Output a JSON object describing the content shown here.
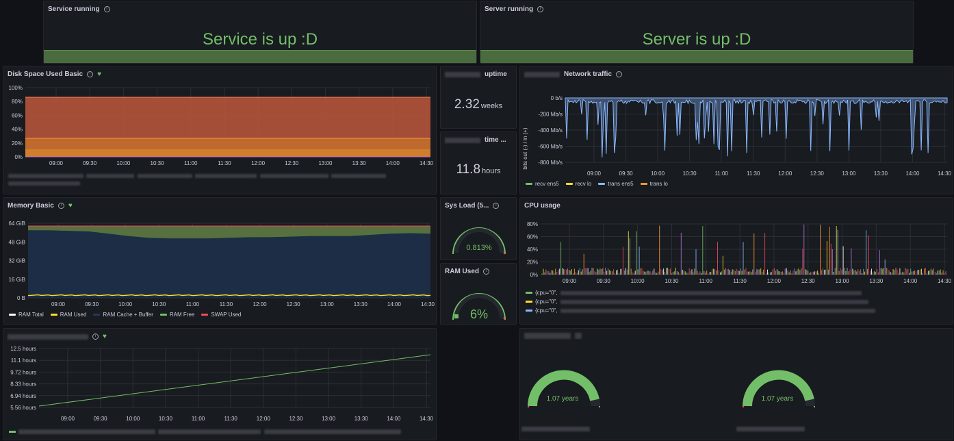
{
  "service": {
    "title": "Service running",
    "text": "Service is up :D"
  },
  "server": {
    "title": "Server running",
    "text": "Server is up :D"
  },
  "disk": {
    "title": "Disk Space Used Basic",
    "yticks": [
      "100%",
      "80%",
      "60%",
      "40%",
      "20%",
      "0%"
    ],
    "xticks": [
      "09:00",
      "09:30",
      "10:00",
      "10:30",
      "11:00",
      "11:30",
      "12:00",
      "12:30",
      "13:00",
      "13:30",
      "14:00",
      "14:30"
    ]
  },
  "uptime": {
    "title": "uptime",
    "value": "2.32",
    "unit": "weeks"
  },
  "time": {
    "title": "time ...",
    "value": "11.8",
    "unit": "hours"
  },
  "network": {
    "title": "Network traffic",
    "ylabel": "bits out (-) / in (+)",
    "yticks": [
      "0 b/s",
      "-200 Mb/s",
      "-400 Mb/s",
      "-600 Mb/s",
      "-800 Mb/s"
    ],
    "xticks": [
      "09:00",
      "09:30",
      "10:00",
      "10:30",
      "11:00",
      "11:30",
      "12:00",
      "12:30",
      "13:00",
      "13:30",
      "14:00",
      "14:30"
    ],
    "legend": [
      {
        "label": "recv ens5",
        "color": "#73bf69"
      },
      {
        "label": "recv lo",
        "color": "#fade2a"
      },
      {
        "label": "trans ens5",
        "color": "#8ab8ff"
      },
      {
        "label": "trans lo",
        "color": "#ff9830"
      }
    ]
  },
  "memory": {
    "title": "Memory Basic",
    "yticks": [
      "64 GiB",
      "48 GiB",
      "32 GiB",
      "16 GiB",
      "0 B"
    ],
    "xticks": [
      "09:00",
      "09:30",
      "10:00",
      "10:30",
      "11:00",
      "11:30",
      "12:00",
      "12:30",
      "13:00",
      "13:30",
      "14:00",
      "14:30"
    ],
    "legend": [
      {
        "label": "RAM Total",
        "color": "#ffffff"
      },
      {
        "label": "RAM Used",
        "color": "#fade2a"
      },
      {
        "label": "RAM Cache + Buffer",
        "color": "#1f3a5f"
      },
      {
        "label": "RAM Free",
        "color": "#73bf69"
      },
      {
        "label": "SWAP Used",
        "color": "#f2495c"
      }
    ]
  },
  "sysload": {
    "title": "Sys Load (5...",
    "value": "0.813%"
  },
  "ramused": {
    "title": "RAM Used",
    "value": "6%"
  },
  "cpu": {
    "title": "CPU usage",
    "yticks": [
      "80%",
      "60%",
      "40%",
      "20%",
      "0%"
    ],
    "xticks": [
      "09:00",
      "09:30",
      "10:00",
      "10:30",
      "11:00",
      "11:30",
      "12:00",
      "12:30",
      "13:00",
      "13:30",
      "14:00",
      "14:30"
    ],
    "legend": [
      {
        "label": "{cpu=\"0\",",
        "color": "#73bf69"
      },
      {
        "label": "{cpu=\"0\",",
        "color": "#fade2a"
      },
      {
        "label": "{cpu=\"0\",",
        "color": "#8ab8ff"
      }
    ]
  },
  "timeline": {
    "yticks": [
      "12.5 hours",
      "11.1 hours",
      "9.72 hours",
      "8.33 hours",
      "6.94 hours",
      "5.56 hours"
    ],
    "xticks": [
      "09:00",
      "09:30",
      "10:00",
      "10:30",
      "11:00",
      "11:30",
      "12:00",
      "12:30",
      "13:00",
      "13:30",
      "14:00",
      "14:30"
    ]
  },
  "gauges": {
    "left": "1.07 years",
    "right": "1.07 years"
  },
  "colors": {
    "green": "#73bf69",
    "bg": "#181b1f",
    "page": "#111217"
  },
  "chart_data": [
    {
      "type": "area",
      "title": "Disk Space Used Basic",
      "x": [
        "09:00",
        "09:30",
        "10:00",
        "10:30",
        "11:00",
        "11:30",
        "12:00",
        "12:30",
        "13:00",
        "13:30",
        "14:00",
        "14:30"
      ],
      "series": [
        {
          "values": [
            86,
            86,
            86,
            86,
            86,
            86,
            86,
            86,
            86,
            86,
            86,
            86
          ]
        },
        {
          "values": [
            26,
            26,
            26,
            26,
            26,
            26,
            26,
            26,
            26,
            26,
            26,
            26
          ]
        },
        {
          "values": [
            12,
            12,
            12,
            12,
            12,
            12,
            12,
            12,
            12,
            12,
            12,
            12
          ]
        }
      ],
      "ylim": [
        0,
        100
      ]
    },
    {
      "type": "area",
      "title": "Memory Basic",
      "x": [
        "09:00",
        "09:30",
        "10:00",
        "10:30",
        "11:00",
        "11:30",
        "12:00",
        "12:30",
        "13:00",
        "13:30",
        "14:00",
        "14:30"
      ],
      "series": [
        {
          "name": "RAM Total",
          "values": [
            62,
            62,
            62,
            62,
            62,
            62,
            62,
            62,
            62,
            62,
            62,
            62
          ]
        },
        {
          "name": "RAM Cache + Buffer",
          "values": [
            58,
            57,
            53,
            51,
            51,
            51,
            52,
            52,
            53,
            53,
            54,
            55
          ]
        },
        {
          "name": "RAM Used",
          "values": [
            2,
            2,
            2,
            2,
            2,
            2,
            2,
            2,
            2,
            2,
            2,
            2
          ]
        }
      ],
      "ylim": [
        0,
        64
      ]
    },
    {
      "type": "line",
      "title": "",
      "x": [
        "09:00",
        "14:30"
      ],
      "values": [
        5.56,
        12.3
      ],
      "ylim": [
        5.2,
        12.8
      ]
    }
  ]
}
